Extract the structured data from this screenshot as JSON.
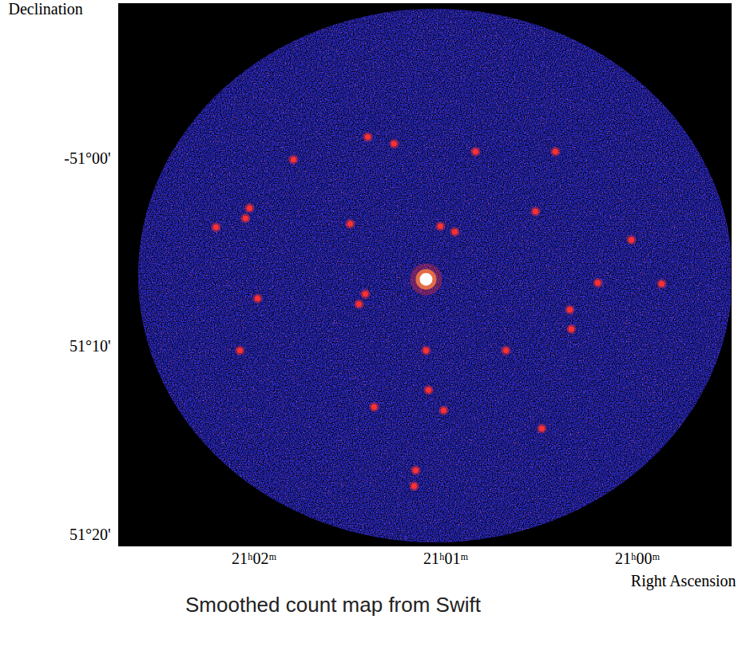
{
  "chart_data": {
    "type": "scatter",
    "caption": "Smoothed count map from Swift",
    "x_label": "Right Ascension",
    "y_label": "Declination",
    "x": [
      1261.27,
      1260.845,
      1261.407,
      1260.428,
      1261.795,
      1262.024,
      1262.045,
      1261.499,
      1261.028,
      1260.532,
      1260.953,
      1260.032,
      1259.874,
      1260.207,
      1261.42,
      1261.453,
      1261.982,
      1260.345,
      1262.074,
      1261.103,
      1260.686,
      1261.09,
      1261.374,
      1261.011,
      1260.499,
      1261.157,
      1261.165,
      1260.353,
      1262.199
    ],
    "y": [
      -50.987,
      -50.994,
      -50.981,
      -50.994,
      -51.001,
      -51.044,
      -51.053,
      -51.058,
      -51.06,
      -51.047,
      -51.065,
      -51.072,
      -51.111,
      -51.11,
      -51.12,
      -51.129,
      -51.124,
      -51.151,
      -51.17,
      -51.17,
      -51.17,
      -51.205,
      -51.22,
      -51.223,
      -51.239,
      -51.276,
      -51.29,
      -51.134,
      -51.061
    ],
    "peak": {
      "x": 1261.103,
      "y": -51.107
    },
    "color": "#ff3030",
    "xlim": [
      1262.707,
      1259.511
    ],
    "ylim": [
      -51.343,
      -50.863
    ],
    "xticks": [
      {
        "value": 1262,
        "label": "21ʰ02ᵐ"
      },
      {
        "value": 1261,
        "label": "21ʰ01ᵐ"
      },
      {
        "value": 1260,
        "label": "21ʰ00ᵐ"
      }
    ],
    "yticks": [
      {
        "value": -51,
        "label": "-51°00'"
      },
      {
        "value": -51.16667,
        "label": "51°10'"
      },
      {
        "value": -51.33333,
        "label": "51°20'"
      }
    ],
    "grid": false
  }
}
